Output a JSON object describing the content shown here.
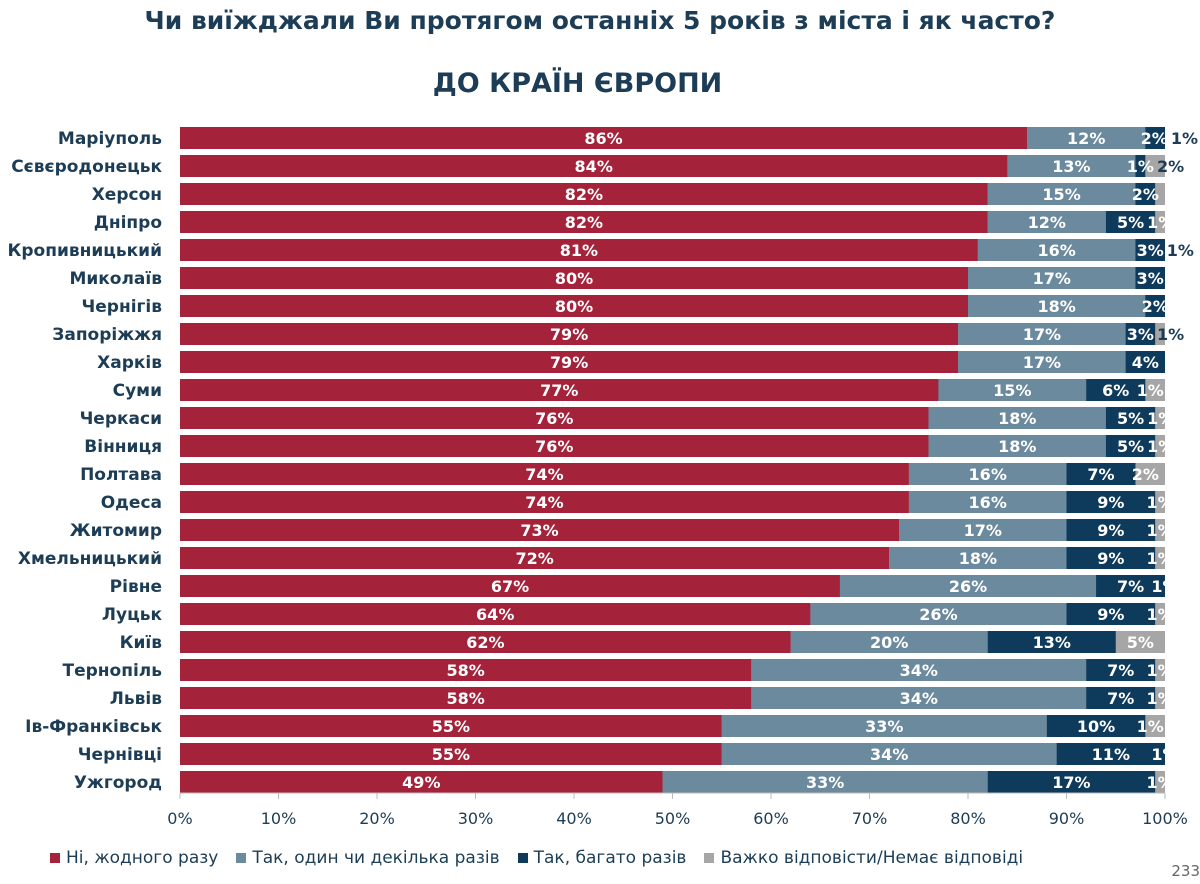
{
  "title": "Чи виїжджали Ви протягом останніх 5 років з міста і як часто?",
  "subtitle": "ДО КРАЇН ЄВРОПИ",
  "page_number": "233",
  "chart_data": {
    "type": "bar",
    "orientation": "horizontal",
    "stacked": "100%",
    "categories": [
      "Маріуполь",
      "Сєвєродонецьк",
      "Херсон",
      "Дніпро",
      "Кропивницький",
      "Миколаїв",
      "Чернігів",
      "Запоріжжя",
      "Харків",
      "Суми",
      "Черкаси",
      "Вінниця",
      "Полтава",
      "Одеса",
      "Житомир",
      "Хмельницький",
      "Рівне",
      "Луцьк",
      "Київ",
      "Тернопіль",
      "Львів",
      "Ів-Франківськ",
      "Чернівці",
      "Ужгород"
    ],
    "series": [
      {
        "name": "Ні, жодного разу",
        "color": "#a4233a",
        "values": [
          86,
          84,
          82,
          82,
          81,
          80,
          80,
          79,
          79,
          77,
          76,
          76,
          74,
          74,
          73,
          72,
          67,
          64,
          62,
          58,
          58,
          55,
          55,
          49
        ]
      },
      {
        "name": "Так, один чи декілька разів",
        "color": "#6b8a9e",
        "values": [
          12,
          13,
          15,
          12,
          16,
          17,
          18,
          17,
          17,
          15,
          18,
          18,
          16,
          16,
          17,
          18,
          26,
          26,
          20,
          34,
          34,
          33,
          34,
          33
        ]
      },
      {
        "name": "Так, багато разів",
        "color": "#0e3a5c",
        "values": [
          2,
          1,
          2,
          5,
          3,
          3,
          2,
          3,
          4,
          6,
          5,
          5,
          7,
          9,
          9,
          9,
          7,
          9,
          13,
          7,
          7,
          10,
          11,
          17
        ]
      },
      {
        "name": "Важко відповісти/Немає відповіді",
        "color": "#a6a6a6",
        "values": [
          1,
          2,
          null,
          1,
          1,
          null,
          null,
          1,
          null,
          1,
          1,
          1,
          2,
          1,
          1,
          1,
          1,
          1,
          5,
          1,
          1,
          1,
          1,
          1
        ]
      }
    ],
    "xticks": [
      "0%",
      "10%",
      "20%",
      "30%",
      "40%",
      "50%",
      "60%",
      "70%",
      "80%",
      "90%",
      "100%"
    ],
    "xlim": [
      0,
      100
    ],
    "grid": false,
    "legend": "bottom"
  }
}
